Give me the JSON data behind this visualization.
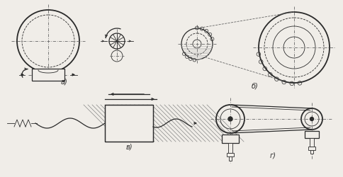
{
  "bg_color": "#f0ede8",
  "lc": "#2a2a2a",
  "label_a": "а)",
  "label_b": "б)",
  "label_v": "в)",
  "label_g": "г)"
}
